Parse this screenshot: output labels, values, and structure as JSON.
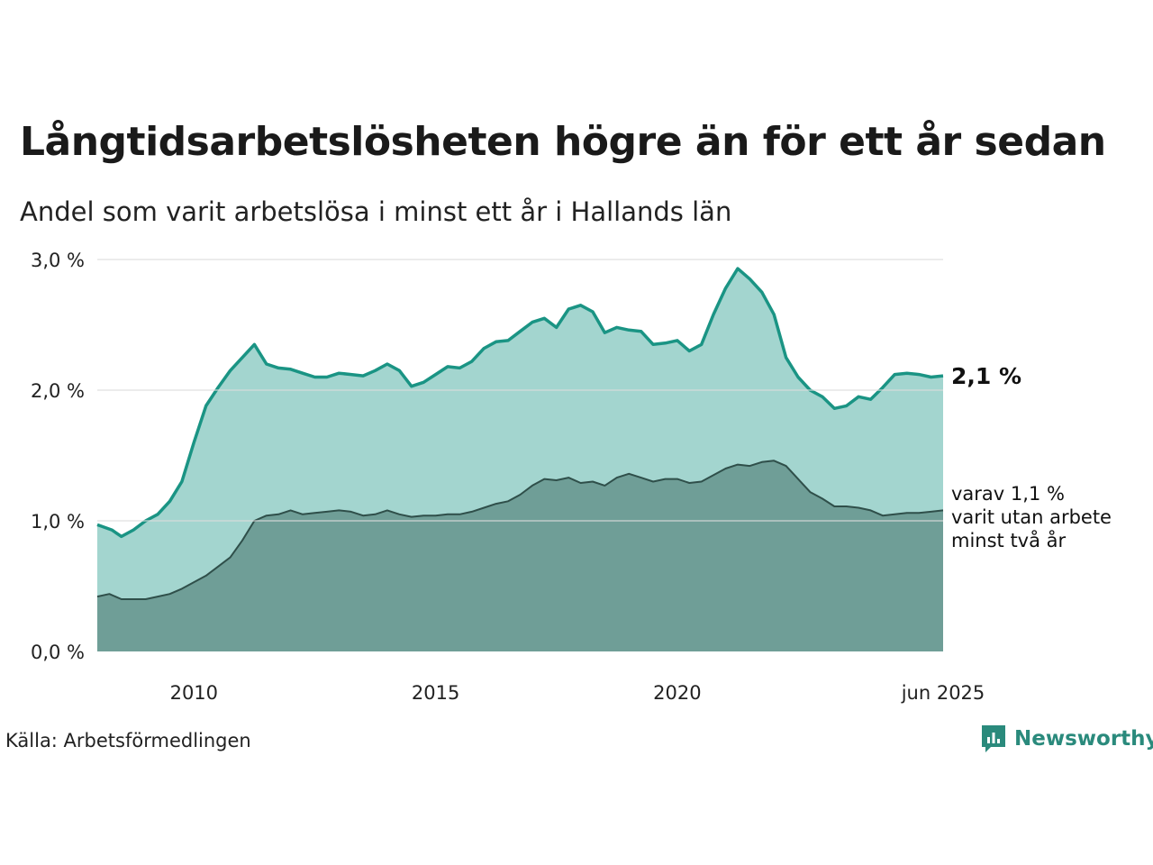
{
  "title": "Långtidsarbetslösheten högre än för ett år sedan",
  "subtitle": "Andel som varit arbetslösa i minst ett år i Hallands län",
  "source": "Källa: Arbetsförmedlingen",
  "brand": {
    "name": "Newsworthy",
    "icon": "newsworthy-logo-icon",
    "color": "#2a8a7c"
  },
  "chart_data": {
    "type": "area",
    "x_start": 2008.0,
    "x_end": 2025.5,
    "ylim": [
      0,
      3.0
    ],
    "yticks": [
      {
        "value": 0,
        "label": "0,0 %"
      },
      {
        "value": 1,
        "label": "1,0 %"
      },
      {
        "value": 2,
        "label": "2,0 %"
      },
      {
        "value": 3,
        "label": "3,0 %"
      }
    ],
    "xticks": [
      {
        "value": 2010,
        "label": "2010"
      },
      {
        "value": 2015,
        "label": "2015"
      },
      {
        "value": 2020,
        "label": "2020"
      },
      {
        "value": 2025.5,
        "label": "jun 2025"
      }
    ],
    "grid": true,
    "colors": {
      "total_line": "#1a9484",
      "total_fill": "#a3d5cf",
      "long_line": "#2f4f4a",
      "long_fill": "#6f9e97",
      "grid": "#dddddd"
    },
    "series": [
      {
        "key": "total",
        "points": [
          [
            2008.0,
            0.97
          ],
          [
            2008.3,
            0.93
          ],
          [
            2008.5,
            0.88
          ],
          [
            2008.75,
            0.93
          ],
          [
            2009.0,
            1.0
          ],
          [
            2009.25,
            1.05
          ],
          [
            2009.5,
            1.15
          ],
          [
            2009.75,
            1.3
          ],
          [
            2010.0,
            1.6
          ],
          [
            2010.25,
            1.88
          ],
          [
            2010.5,
            2.02
          ],
          [
            2010.75,
            2.15
          ],
          [
            2011.0,
            2.25
          ],
          [
            2011.25,
            2.35
          ],
          [
            2011.5,
            2.2
          ],
          [
            2011.75,
            2.17
          ],
          [
            2012.0,
            2.16
          ],
          [
            2012.25,
            2.13
          ],
          [
            2012.5,
            2.1
          ],
          [
            2012.75,
            2.1
          ],
          [
            2013.0,
            2.13
          ],
          [
            2013.25,
            2.12
          ],
          [
            2013.5,
            2.11
          ],
          [
            2013.75,
            2.15
          ],
          [
            2014.0,
            2.2
          ],
          [
            2014.25,
            2.15
          ],
          [
            2014.5,
            2.03
          ],
          [
            2014.75,
            2.06
          ],
          [
            2015.0,
            2.12
          ],
          [
            2015.25,
            2.18
          ],
          [
            2015.5,
            2.17
          ],
          [
            2015.75,
            2.22
          ],
          [
            2016.0,
            2.32
          ],
          [
            2016.25,
            2.37
          ],
          [
            2016.5,
            2.38
          ],
          [
            2016.75,
            2.45
          ],
          [
            2017.0,
            2.52
          ],
          [
            2017.25,
            2.55
          ],
          [
            2017.5,
            2.48
          ],
          [
            2017.75,
            2.62
          ],
          [
            2018.0,
            2.65
          ],
          [
            2018.25,
            2.6
          ],
          [
            2018.5,
            2.44
          ],
          [
            2018.75,
            2.48
          ],
          [
            2019.0,
            2.46
          ],
          [
            2019.25,
            2.45
          ],
          [
            2019.5,
            2.35
          ],
          [
            2019.75,
            2.36
          ],
          [
            2020.0,
            2.38
          ],
          [
            2020.25,
            2.3
          ],
          [
            2020.5,
            2.35
          ],
          [
            2020.75,
            2.58
          ],
          [
            2021.0,
            2.78
          ],
          [
            2021.25,
            2.93
          ],
          [
            2021.5,
            2.85
          ],
          [
            2021.75,
            2.75
          ],
          [
            2022.0,
            2.58
          ],
          [
            2022.25,
            2.25
          ],
          [
            2022.5,
            2.1
          ],
          [
            2022.75,
            2.0
          ],
          [
            2023.0,
            1.95
          ],
          [
            2023.25,
            1.86
          ],
          [
            2023.5,
            1.88
          ],
          [
            2023.75,
            1.95
          ],
          [
            2024.0,
            1.93
          ],
          [
            2024.25,
            2.02
          ],
          [
            2024.5,
            2.12
          ],
          [
            2024.75,
            2.13
          ],
          [
            2025.0,
            2.12
          ],
          [
            2025.25,
            2.1
          ],
          [
            2025.5,
            2.11
          ]
        ]
      },
      {
        "key": "long",
        "points": [
          [
            2008.0,
            0.42
          ],
          [
            2008.25,
            0.44
          ],
          [
            2008.5,
            0.4
          ],
          [
            2008.75,
            0.4
          ],
          [
            2009.0,
            0.4
          ],
          [
            2009.25,
            0.42
          ],
          [
            2009.5,
            0.44
          ],
          [
            2009.75,
            0.48
          ],
          [
            2010.0,
            0.53
          ],
          [
            2010.25,
            0.58
          ],
          [
            2010.5,
            0.65
          ],
          [
            2010.75,
            0.72
          ],
          [
            2011.0,
            0.85
          ],
          [
            2011.25,
            1.0
          ],
          [
            2011.5,
            1.04
          ],
          [
            2011.75,
            1.05
          ],
          [
            2012.0,
            1.08
          ],
          [
            2012.25,
            1.05
          ],
          [
            2012.5,
            1.06
          ],
          [
            2012.75,
            1.07
          ],
          [
            2013.0,
            1.08
          ],
          [
            2013.25,
            1.07
          ],
          [
            2013.5,
            1.04
          ],
          [
            2013.75,
            1.05
          ],
          [
            2014.0,
            1.08
          ],
          [
            2014.25,
            1.05
          ],
          [
            2014.5,
            1.03
          ],
          [
            2014.75,
            1.04
          ],
          [
            2015.0,
            1.04
          ],
          [
            2015.25,
            1.05
          ],
          [
            2015.5,
            1.05
          ],
          [
            2015.75,
            1.07
          ],
          [
            2016.0,
            1.1
          ],
          [
            2016.25,
            1.13
          ],
          [
            2016.5,
            1.15
          ],
          [
            2016.75,
            1.2
          ],
          [
            2017.0,
            1.27
          ],
          [
            2017.25,
            1.32
          ],
          [
            2017.5,
            1.31
          ],
          [
            2017.75,
            1.33
          ],
          [
            2018.0,
            1.29
          ],
          [
            2018.25,
            1.3
          ],
          [
            2018.5,
            1.27
          ],
          [
            2018.75,
            1.33
          ],
          [
            2019.0,
            1.36
          ],
          [
            2019.25,
            1.33
          ],
          [
            2019.5,
            1.3
          ],
          [
            2019.75,
            1.32
          ],
          [
            2020.0,
            1.32
          ],
          [
            2020.25,
            1.29
          ],
          [
            2020.5,
            1.3
          ],
          [
            2020.75,
            1.35
          ],
          [
            2021.0,
            1.4
          ],
          [
            2021.25,
            1.43
          ],
          [
            2021.5,
            1.42
          ],
          [
            2021.75,
            1.45
          ],
          [
            2022.0,
            1.46
          ],
          [
            2022.25,
            1.42
          ],
          [
            2022.5,
            1.32
          ],
          [
            2022.75,
            1.22
          ],
          [
            2023.0,
            1.17
          ],
          [
            2023.25,
            1.11
          ],
          [
            2023.5,
            1.11
          ],
          [
            2023.75,
            1.1
          ],
          [
            2024.0,
            1.08
          ],
          [
            2024.25,
            1.04
          ],
          [
            2024.5,
            1.05
          ],
          [
            2024.75,
            1.06
          ],
          [
            2025.0,
            1.06
          ],
          [
            2025.25,
            1.07
          ],
          [
            2025.5,
            1.08
          ]
        ]
      }
    ],
    "annotations": {
      "total_label": "2,1 %",
      "long_label_lines": [
        "varav 1,1 %",
        "varit utan arbete",
        "minst två år"
      ]
    }
  }
}
